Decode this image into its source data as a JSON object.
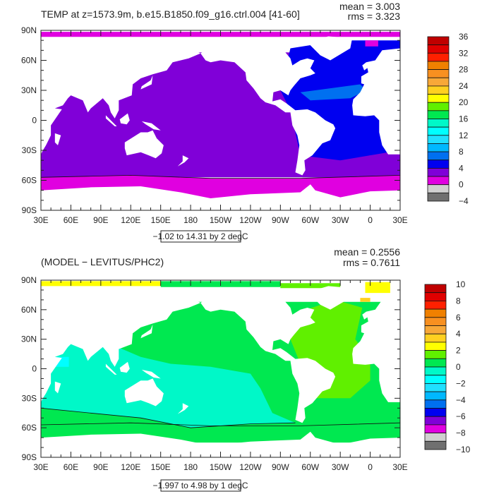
{
  "chart_data": [
    {
      "type": "heatmap",
      "title": "TEMP at z=1573.9m, b.e15.B1850.f09_g16.ctrl.004 [41-60]",
      "stats": {
        "mean": "mean = 3.003",
        "rms": "rms = 3.323"
      },
      "subtitle": "−1.02 to 14.31 by 2 degC",
      "x_ticks": [
        "30E",
        "60E",
        "90E",
        "120E",
        "150E",
        "180",
        "150W",
        "120W",
        "90W",
        "60W",
        "30W",
        "0",
        "30E"
      ],
      "y_ticks": [
        "90N",
        "60N",
        "30N",
        "0",
        "30S",
        "60S",
        "90S"
      ],
      "colorbar": {
        "labels": [
          "36",
          "32",
          "28",
          "24",
          "20",
          "16",
          "12",
          "8",
          "4",
          "0",
          "−4"
        ],
        "colors": [
          "#c00000",
          "#e00000",
          "#ff2000",
          "#f08000",
          "#f89020",
          "#f8a838",
          "#ffd020",
          "#ffff00",
          "#60f000",
          "#00e850",
          "#00f8c8",
          "#00ffff",
          "#20e0ff",
          "#00b8ff",
          "#0070f0",
          "#0000f0",
          "#8000d8",
          "#e000e0",
          "#d0d0d0",
          "#707070"
        ]
      }
    },
    {
      "type": "heatmap",
      "title": "(MODEL − LEVITUS/PHC2)",
      "stats": {
        "mean": "mean = 0.2556",
        "rms": "rms = 0.7611"
      },
      "subtitle": "−1.997 to 4.98 by 1 degC",
      "x_ticks": [
        "30E",
        "60E",
        "90E",
        "120E",
        "150E",
        "180",
        "150W",
        "120W",
        "90W",
        "60W",
        "30W",
        "0",
        "30E"
      ],
      "y_ticks": [
        "90N",
        "60N",
        "30N",
        "0",
        "30S",
        "60S",
        "90S"
      ],
      "colorbar": {
        "labels": [
          "10",
          "8",
          "6",
          "4",
          "2",
          "0",
          "−2",
          "−4",
          "−6",
          "−8",
          "−10"
        ],
        "colors": [
          "#c00000",
          "#e00000",
          "#ff2000",
          "#f08000",
          "#f89020",
          "#f8a838",
          "#ffd020",
          "#ffff00",
          "#60f000",
          "#00e850",
          "#00f8c8",
          "#00ffff",
          "#20e0ff",
          "#00b8ff",
          "#0070f0",
          "#0000f0",
          "#8000d8",
          "#e000e0",
          "#d0d0d0",
          "#707070"
        ]
      }
    }
  ]
}
